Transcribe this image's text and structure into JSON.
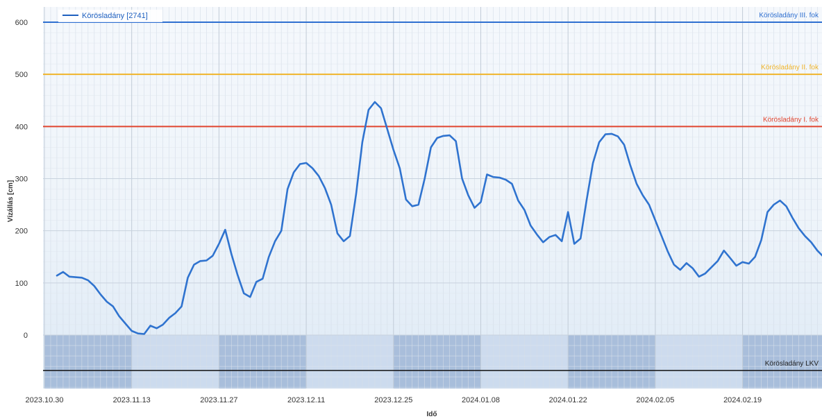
{
  "chart_data": {
    "type": "line",
    "xlabel": "Idő",
    "ylabel": "Vízállás [cm]",
    "ylim": [
      -100,
      600
    ],
    "yticks": [
      0,
      100,
      200,
      300,
      400,
      500,
      600
    ],
    "xlim": [
      "2023-10-30",
      "2024-03-06"
    ],
    "xticks": [
      "2023.10.30",
      "2023.11.13",
      "2023.11.27",
      "2023.12.11",
      "2023.12.25",
      "2024.01.08",
      "2024.01.22",
      "2024.02.05",
      "2024.02.19"
    ],
    "grid": true,
    "legend": {
      "position": "top-left",
      "entries": [
        "Körösladány [2741]"
      ]
    },
    "reference_lines": [
      {
        "label": "Körösladány III. fok",
        "value": 600,
        "color": "#2e6fd0"
      },
      {
        "label": "Körösladány II. fok",
        "value": 500,
        "color": "#f0b429"
      },
      {
        "label": "Körösladány I. fok",
        "value": 400,
        "color": "#e0452f"
      },
      {
        "label": "Körösladány LKV",
        "value": -68,
        "color": "#111111"
      }
    ],
    "series": [
      {
        "name": "Körösladány [2741]",
        "color": "#2f73cf",
        "points": [
          [
            "2023-11-01",
            114
          ],
          [
            "2023-11-02",
            121
          ],
          [
            "2023-11-03",
            112
          ],
          [
            "2023-11-05",
            110
          ],
          [
            "2023-11-06",
            105
          ],
          [
            "2023-11-07",
            94
          ],
          [
            "2023-11-08",
            78
          ],
          [
            "2023-11-09",
            64
          ],
          [
            "2023-11-10",
            55
          ],
          [
            "2023-11-11",
            36
          ],
          [
            "2023-11-12",
            22
          ],
          [
            "2023-11-13",
            8
          ],
          [
            "2023-11-14",
            3
          ],
          [
            "2023-11-15",
            2
          ],
          [
            "2023-11-16",
            18
          ],
          [
            "2023-11-17",
            13
          ],
          [
            "2023-11-18",
            20
          ],
          [
            "2023-11-19",
            33
          ],
          [
            "2023-11-20",
            42
          ],
          [
            "2023-11-21",
            55
          ],
          [
            "2023-11-22",
            110
          ],
          [
            "2023-11-23",
            135
          ],
          [
            "2023-11-24",
            142
          ],
          [
            "2023-11-25",
            143
          ],
          [
            "2023-11-26",
            152
          ],
          [
            "2023-11-27",
            175
          ],
          [
            "2023-11-28",
            202
          ],
          [
            "2023-11-29",
            155
          ],
          [
            "2023-11-30",
            115
          ],
          [
            "2023-12-01",
            80
          ],
          [
            "2023-12-02",
            73
          ],
          [
            "2023-12-03",
            102
          ],
          [
            "2023-12-04",
            108
          ],
          [
            "2023-12-05",
            150
          ],
          [
            "2023-12-06",
            180
          ],
          [
            "2023-12-07",
            200
          ],
          [
            "2023-12-08",
            280
          ],
          [
            "2023-12-09",
            312
          ],
          [
            "2023-12-10",
            328
          ],
          [
            "2023-12-11",
            330
          ],
          [
            "2023-12-12",
            320
          ],
          [
            "2023-12-13",
            305
          ],
          [
            "2023-12-14",
            282
          ],
          [
            "2023-12-15",
            250
          ],
          [
            "2023-12-16",
            195
          ],
          [
            "2023-12-17",
            180
          ],
          [
            "2023-12-18",
            190
          ],
          [
            "2023-12-19",
            270
          ],
          [
            "2023-12-20",
            370
          ],
          [
            "2023-12-21",
            432
          ],
          [
            "2023-12-22",
            447
          ],
          [
            "2023-12-23",
            435
          ],
          [
            "2023-12-24",
            395
          ],
          [
            "2023-12-25",
            355
          ],
          [
            "2023-12-26",
            320
          ],
          [
            "2023-12-27",
            260
          ],
          [
            "2023-12-28",
            247
          ],
          [
            "2023-12-29",
            250
          ],
          [
            "2023-12-30",
            300
          ],
          [
            "2023-12-31",
            360
          ],
          [
            "2024-01-01",
            378
          ],
          [
            "2024-01-02",
            382
          ],
          [
            "2024-01-03",
            383
          ],
          [
            "2024-01-04",
            372
          ],
          [
            "2024-01-05",
            300
          ],
          [
            "2024-01-06",
            268
          ],
          [
            "2024-01-07",
            244
          ],
          [
            "2024-01-08",
            255
          ],
          [
            "2024-01-09",
            308
          ],
          [
            "2024-01-10",
            303
          ],
          [
            "2024-01-11",
            302
          ],
          [
            "2024-01-12",
            298
          ],
          [
            "2024-01-13",
            290
          ],
          [
            "2024-01-14",
            258
          ],
          [
            "2024-01-15",
            240
          ],
          [
            "2024-01-16",
            210
          ],
          [
            "2024-01-17",
            193
          ],
          [
            "2024-01-18",
            178
          ],
          [
            "2024-01-19",
            188
          ],
          [
            "2024-01-20",
            192
          ],
          [
            "2024-01-21",
            180
          ],
          [
            "2024-01-22",
            236
          ],
          [
            "2024-01-23",
            175
          ],
          [
            "2024-01-24",
            185
          ],
          [
            "2024-01-25",
            260
          ],
          [
            "2024-01-26",
            330
          ],
          [
            "2024-01-27",
            370
          ],
          [
            "2024-01-28",
            385
          ],
          [
            "2024-01-29",
            386
          ],
          [
            "2024-01-30",
            381
          ],
          [
            "2024-01-31",
            365
          ],
          [
            "2024-02-01",
            325
          ],
          [
            "2024-02-02",
            290
          ],
          [
            "2024-02-03",
            268
          ],
          [
            "2024-02-04",
            250
          ],
          [
            "2024-02-05",
            220
          ],
          [
            "2024-02-06",
            190
          ],
          [
            "2024-02-07",
            160
          ],
          [
            "2024-02-08",
            135
          ],
          [
            "2024-02-09",
            125
          ],
          [
            "2024-02-10",
            138
          ],
          [
            "2024-02-11",
            128
          ],
          [
            "2024-02-12",
            112
          ],
          [
            "2024-02-13",
            118
          ],
          [
            "2024-02-14",
            130
          ],
          [
            "2024-02-15",
            142
          ],
          [
            "2024-02-16",
            162
          ],
          [
            "2024-02-17",
            148
          ],
          [
            "2024-02-18",
            133
          ],
          [
            "2024-02-19",
            140
          ],
          [
            "2024-02-20",
            137
          ],
          [
            "2024-02-21",
            150
          ],
          [
            "2024-02-22",
            182
          ],
          [
            "2024-02-23",
            236
          ],
          [
            "2024-02-24",
            250
          ],
          [
            "2024-02-25",
            258
          ],
          [
            "2024-02-26",
            247
          ],
          [
            "2024-02-27",
            225
          ],
          [
            "2024-02-28",
            205
          ],
          [
            "2024-02-29",
            190
          ],
          [
            "2024-03-01",
            178
          ],
          [
            "2024-03-02",
            162
          ],
          [
            "2024-03-03",
            150
          ],
          [
            "2024-03-04",
            143
          ],
          [
            "2024-03-05",
            150
          ],
          [
            "2024-03-06",
            158
          ]
        ]
      }
    ]
  }
}
